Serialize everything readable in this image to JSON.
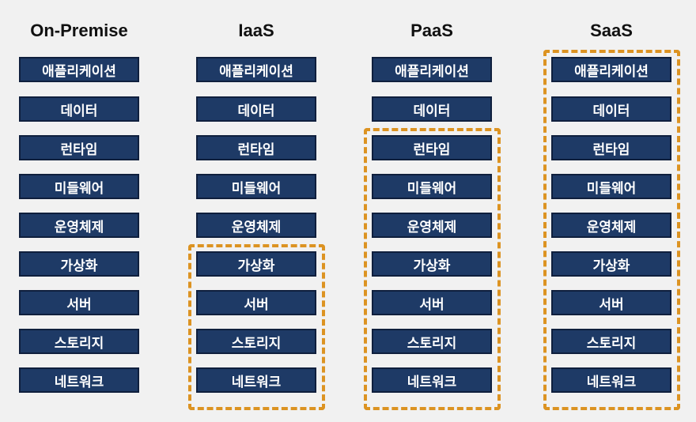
{
  "layers": [
    "애플리케이션",
    "데이터",
    "런타임",
    "미들웨어",
    "운영체제",
    "가상화",
    "서버",
    "스토리지",
    "네트워크"
  ],
  "columns": [
    {
      "title": "On-Premise",
      "managed_from_layer": null
    },
    {
      "title": "IaaS",
      "managed_from_layer": 5
    },
    {
      "title": "PaaS",
      "managed_from_layer": 2
    },
    {
      "title": "SaaS",
      "managed_from_layer": 0
    }
  ],
  "colors": {
    "background": "#f1f1f1",
    "layer_fill": "#1e3a66",
    "layer_border": "#0f1f3d",
    "layer_text": "#ffffff",
    "bracket": "#dc9322",
    "title_text": "#111111"
  }
}
